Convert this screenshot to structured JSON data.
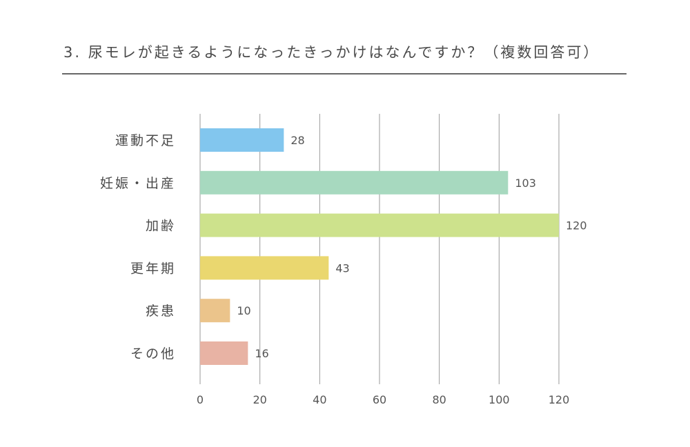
{
  "title": "3. 尿モレが起きるようになったきっかけはなんですか？（複数回答可）",
  "chart_data": {
    "type": "bar",
    "orientation": "horizontal",
    "categories": [
      "運動不足",
      "妊娠・出産",
      "加齢",
      "更年期",
      "疾患",
      "その他"
    ],
    "values": [
      28,
      103,
      120,
      43,
      10,
      16
    ],
    "colors": [
      "#82c6ee",
      "#a7d9bf",
      "#cde28c",
      "#ead76f",
      "#ebc48b",
      "#e8b3a4"
    ],
    "xlim": [
      0,
      120
    ],
    "xticks": [
      "0",
      "20",
      "40",
      "60",
      "80",
      "100",
      "120"
    ],
    "grid": true,
    "legend": "none"
  }
}
